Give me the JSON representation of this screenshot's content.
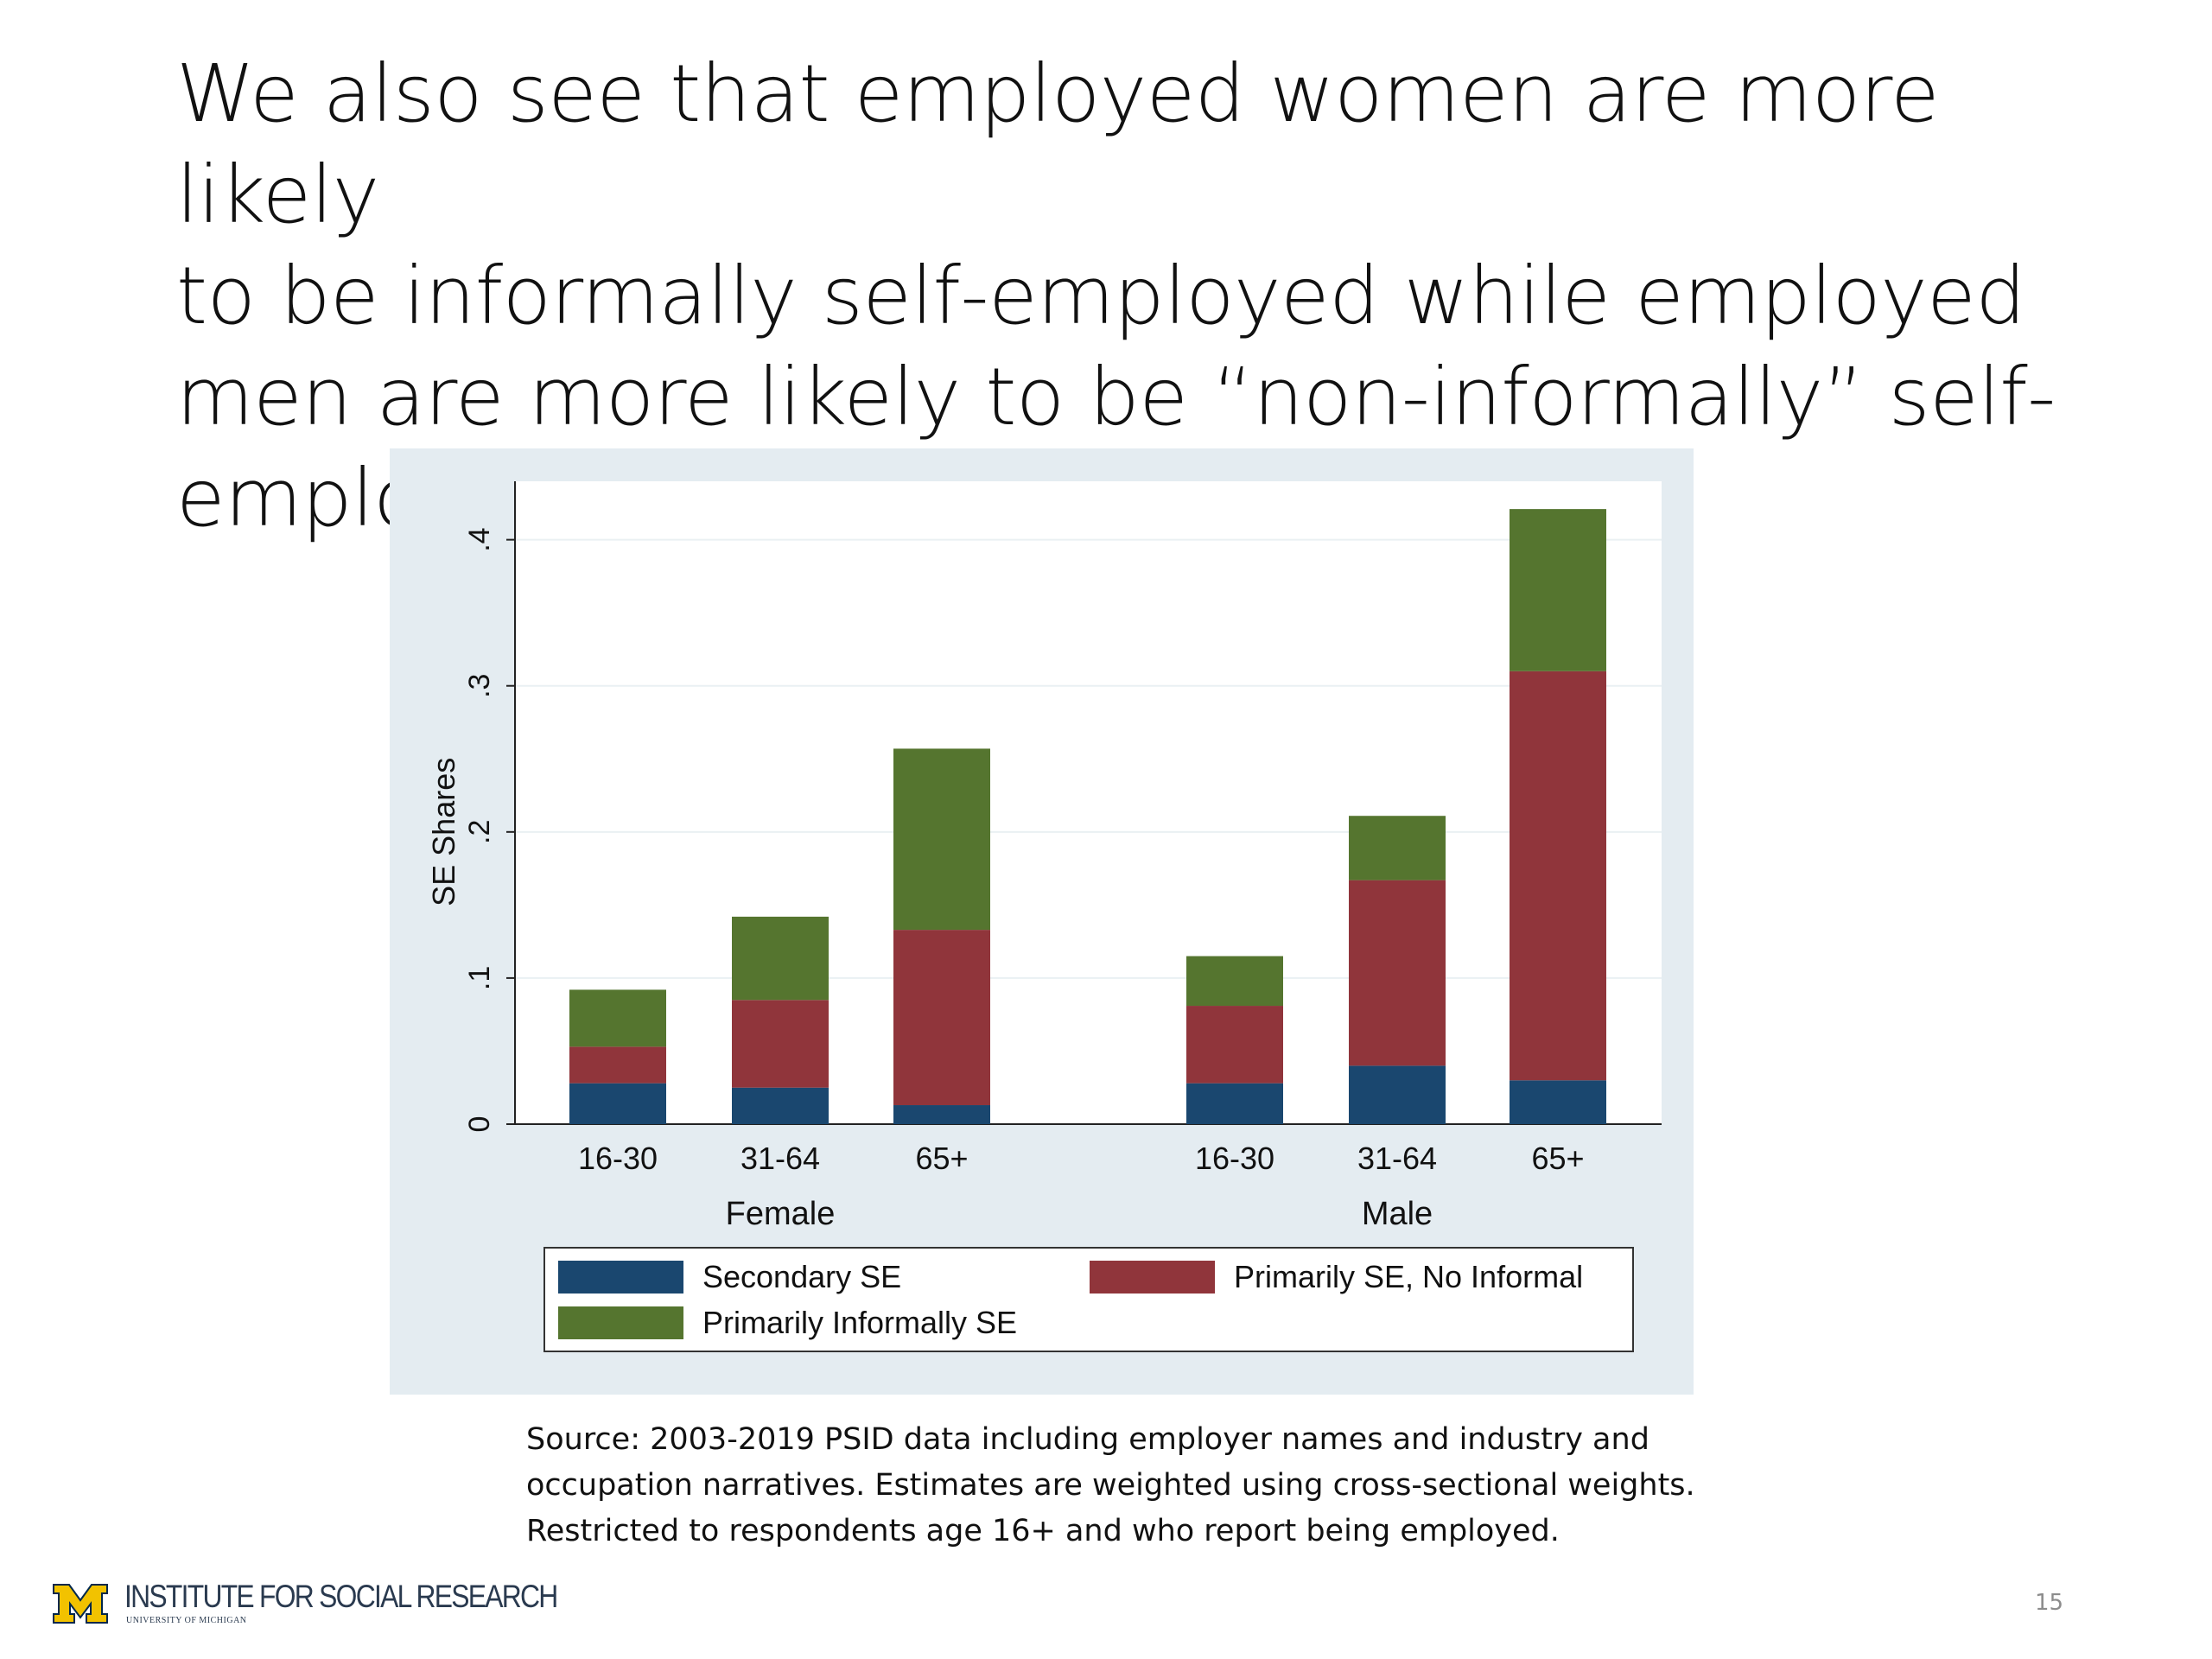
{
  "slide": {
    "title": "We also see that employed women are more likely to be informally self-employed while employed men are more likely to be “non-informally” self-employed",
    "title_lines": [
      "We also see that employed women are more likely",
      "to be informally self-employed while employed",
      "men are more likely to be “non-informally” self-",
      "employed"
    ],
    "source_lines": [
      "Source: 2003-2019 PSID data including employer names and industry and",
      "occupation narratives. Estimates are weighted using cross-sectional weights.",
      "Restricted to respondents age 16+ and who report being employed."
    ],
    "page_number": "15"
  },
  "footer": {
    "org_name": "INSTITUTE FOR SOCIAL RESEARCH",
    "org_sub": "UNIVERSITY OF MICHIGAN",
    "logo_icon": "block-m-icon",
    "logo_colors": {
      "maize": "#f2c200",
      "blue": "#00274c"
    }
  },
  "chart_data": {
    "type": "bar",
    "stacked": true,
    "title": "",
    "xlabel": "",
    "ylabel": "SE Shares",
    "ylim": [
      0,
      0.44
    ],
    "yticks": [
      0,
      0.1,
      0.2,
      0.3,
      0.4
    ],
    "ytick_labels": [
      "0",
      ".1",
      ".2",
      ".3",
      ".4"
    ],
    "grid": true,
    "groups": [
      {
        "name": "Female",
        "categories": [
          "16-30",
          "31-64",
          "65+"
        ]
      },
      {
        "name": "Male",
        "categories": [
          "16-30",
          "31-64",
          "65+"
        ]
      }
    ],
    "series": [
      {
        "name": "Secondary SE",
        "color": "#1a476f",
        "values": [
          0.028,
          0.025,
          0.013,
          0.028,
          0.04,
          0.03
        ]
      },
      {
        "name": "Primarily SE, No Informal",
        "color": "#90353b",
        "values": [
          0.025,
          0.06,
          0.12,
          0.053,
          0.127,
          0.28
        ]
      },
      {
        "name": "Primarily Informally SE",
        "color": "#55752f",
        "values": [
          0.039,
          0.057,
          0.124,
          0.034,
          0.044,
          0.111
        ]
      }
    ],
    "legend": {
      "placement": "bottom",
      "columns": 2
    },
    "plot_background": "#ffffff",
    "panel_background": "#e4ecf1"
  }
}
